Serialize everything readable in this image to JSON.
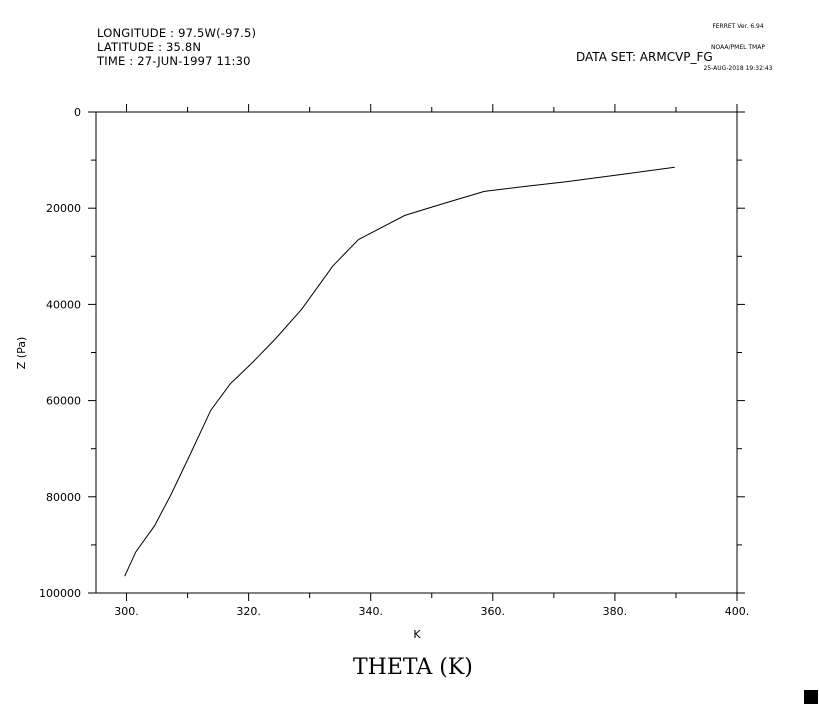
{
  "header": {
    "longitude": "LONGITUDE : 97.5W(-97.5)",
    "latitude": "LATITUDE : 35.8N",
    "time": "TIME : 27-JUN-1997 11:30",
    "dataset": "DATA SET: ARMCVP_FG"
  },
  "stamp": {
    "line1": "FERRET Ver. 6.94",
    "line2": "NOAA/PMEL TMAP",
    "line3": "25-AUG-2018 19:32:43"
  },
  "chart_data": {
    "type": "line",
    "title": "THETA (K)",
    "xlabel": "K",
    "ylabel": "Z (Pa)",
    "xlim": [
      295,
      400
    ],
    "ylim": [
      100000,
      0
    ],
    "y_inverted": true,
    "x_ticks": [
      300,
      320,
      340,
      360,
      380,
      400
    ],
    "x_tick_labels": [
      "300.",
      "320.",
      "340.",
      "360.",
      "380.",
      "400."
    ],
    "y_ticks": [
      0,
      20000,
      40000,
      60000,
      80000,
      100000
    ],
    "y_tick_labels": [
      "0",
      "20000",
      "40000",
      "60000",
      "80000",
      "100000"
    ],
    "grid": false,
    "series": [
      {
        "x": [
          299.7,
          301.5,
          304.6,
          307.3,
          310.5,
          313.8,
          317.0,
          320.7,
          324.5,
          328.7,
          333.8,
          338.0,
          345.6,
          352.0,
          358.6,
          365.0,
          372.0,
          381.0,
          389.8
        ],
        "y": [
          96500,
          91500,
          86000,
          79500,
          71000,
          62000,
          56500,
          52000,
          47000,
          41000,
          32000,
          26500,
          21500,
          19000,
          16500,
          15500,
          14500,
          13000,
          11500
        ]
      }
    ]
  }
}
